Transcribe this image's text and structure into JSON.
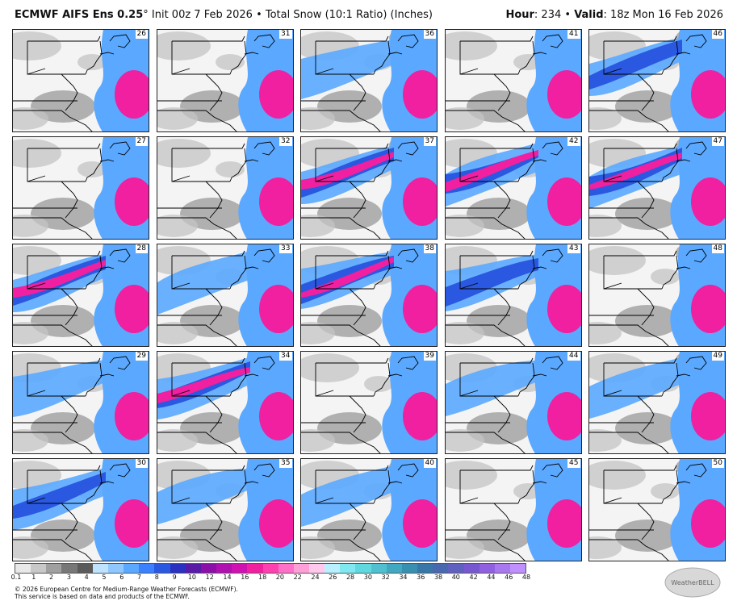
{
  "header": {
    "model": "ECMWF AIFS Ens 0.25",
    "degree": "°",
    "subtitle": " Init 00z 7 Feb 2026 • Total Snow (10:1 Ratio) (Inches)",
    "hour_label": "Hour",
    "hour_value": ": 234 • ",
    "valid_label": "Valid",
    "valid_value": ": 18z Mon 16 Feb 2026"
  },
  "members": [
    [
      "26",
      "31",
      "36",
      "41",
      "46"
    ],
    [
      "27",
      "32",
      "37",
      "42",
      "47"
    ],
    [
      "28",
      "33",
      "38",
      "43",
      "48"
    ],
    [
      "29",
      "34",
      "39",
      "44",
      "49"
    ],
    [
      "30",
      "35",
      "40",
      "45",
      "50"
    ]
  ],
  "panel_intensity": [
    [
      1,
      1,
      2,
      1,
      3
    ],
    [
      1,
      1,
      4,
      4,
      4
    ],
    [
      4,
      2,
      4,
      3,
      1
    ],
    [
      2,
      4,
      1,
      2,
      2
    ],
    [
      3,
      2,
      2,
      1,
      1
    ]
  ],
  "legend": {
    "colors": [
      "#e8e8e8",
      "#c8c8c8",
      "#a0a0a0",
      "#777777",
      "#5a5a5a",
      "#bfe3ff",
      "#8fc8ff",
      "#5aa8ff",
      "#3a80ff",
      "#2a58e0",
      "#2a30c0",
      "#5a1aa8",
      "#8a10a8",
      "#b010b0",
      "#d010b0",
      "#f020a0",
      "#ff40b0",
      "#ff70c8",
      "#ff9fd8",
      "#ffc8ec",
      "#b8f0ff",
      "#80e8f0",
      "#60d8e0",
      "#50c0d0",
      "#40a8c0",
      "#3890b0",
      "#3878a8",
      "#4a68b0",
      "#6060c0",
      "#7858d0",
      "#9060e0",
      "#a878f0",
      "#c090ff"
    ],
    "ticks": [
      "0.1",
      "1",
      "2",
      "3",
      "4",
      "5",
      "6",
      "7",
      "8",
      "9",
      "10",
      "12",
      "14",
      "16",
      "18",
      "20",
      "22",
      "24",
      "26",
      "28",
      "30",
      "32",
      "34",
      "36",
      "38",
      "40",
      "42",
      "44",
      "46",
      "48"
    ]
  },
  "footer": {
    "line1": "© 2026 European Centre for Medium-Range Weather Forecasts (ECMWF).",
    "line2": "This service is based on data and products of the ECMWF."
  },
  "logo_text": "WeatherBELL"
}
